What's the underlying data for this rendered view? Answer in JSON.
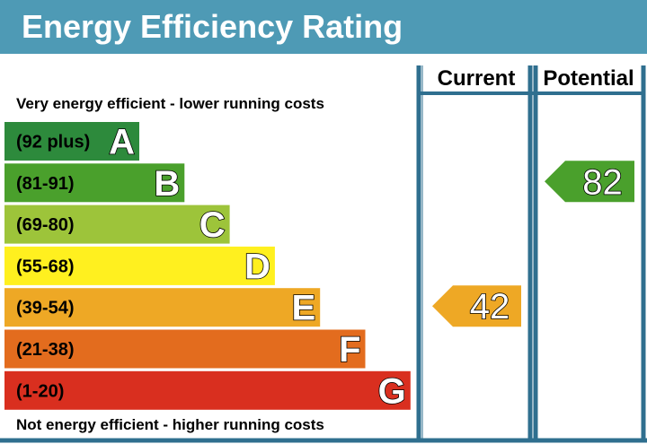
{
  "title": "Energy Efficiency Rating",
  "colors": {
    "header_bg": "#4e9ab5",
    "frame": "#2f6f8f",
    "A": "#2d8a3c",
    "B": "#4aa02c",
    "C": "#9dc43a",
    "D": "#fff01f",
    "E": "#eea825",
    "F": "#e36c1e",
    "G": "#d92f1f"
  },
  "captions": {
    "top": "Very energy efficient - lower running costs",
    "bottom": "Not energy efficient - higher running costs"
  },
  "chart_data": {
    "type": "bar",
    "title": "Energy Efficiency Rating",
    "bands": [
      {
        "letter": "A",
        "range": "(92 plus)",
        "min": 92,
        "max": null
      },
      {
        "letter": "B",
        "range": "(81-91)",
        "min": 81,
        "max": 91
      },
      {
        "letter": "C",
        "range": "(69-80)",
        "min": 69,
        "max": 80
      },
      {
        "letter": "D",
        "range": "(55-68)",
        "min": 55,
        "max": 68
      },
      {
        "letter": "E",
        "range": "(39-54)",
        "min": 39,
        "max": 54
      },
      {
        "letter": "F",
        "range": "(21-38)",
        "min": 21,
        "max": 38
      },
      {
        "letter": "G",
        "range": "(1-20)",
        "min": 1,
        "max": 20
      }
    ],
    "columns": [
      {
        "label": "Current",
        "value": 42,
        "band": "E"
      },
      {
        "label": "Potential",
        "value": 82,
        "band": "B"
      }
    ]
  }
}
